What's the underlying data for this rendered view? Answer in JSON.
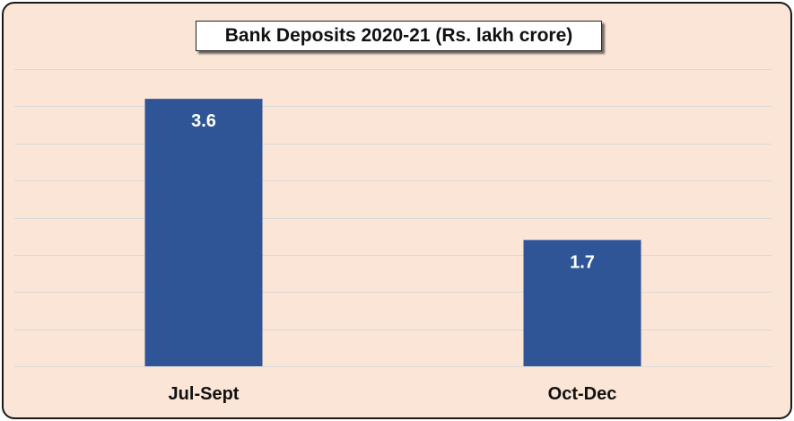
{
  "chart_data": {
    "type": "bar",
    "title": "Bank Deposits 2020-21 (Rs. lakh crore)",
    "categories": [
      "Jul-Sept",
      "Oct-Dec"
    ],
    "values": [
      3.6,
      1.7
    ],
    "data_labels": [
      "3.6",
      "1.7"
    ],
    "ylim": [
      0,
      4
    ],
    "grid": true,
    "y_axis_labels_visible": false,
    "legend": "none",
    "bar_color": "#2f5597",
    "background_color": "#fbe5d6",
    "gridline_color": "#d9d9d9",
    "label_color": "#ffffff"
  }
}
